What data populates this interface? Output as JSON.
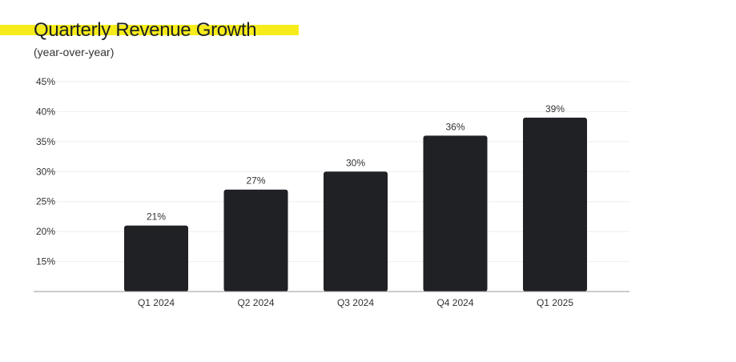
{
  "header": {
    "title": "Quarterly Revenue Growth",
    "subtitle": "(year-over-year)"
  },
  "colors": {
    "bar": "#1f2124",
    "highlight": "#f6ec1b",
    "grid": "#eeeeee",
    "axis": "#999999"
  },
  "chart_data": {
    "type": "bar",
    "title": "Quarterly Revenue Growth",
    "subtitle": "(year-over-year)",
    "xlabel": "",
    "ylabel": "",
    "categories": [
      "Q1 2024",
      "Q2 2024",
      "Q3 2024",
      "Q4 2024",
      "Q1 2025"
    ],
    "values": [
      21,
      27,
      30,
      36,
      39
    ],
    "value_labels": [
      "21%",
      "27%",
      "30%",
      "36%",
      "39%"
    ],
    "ylim": [
      10,
      45
    ],
    "yticks": [
      15,
      20,
      25,
      30,
      35,
      40,
      45
    ],
    "ytick_labels": [
      "15%",
      "20%",
      "25%",
      "30%",
      "35%",
      "40%",
      "45%"
    ],
    "grid": true,
    "legend": "none"
  }
}
